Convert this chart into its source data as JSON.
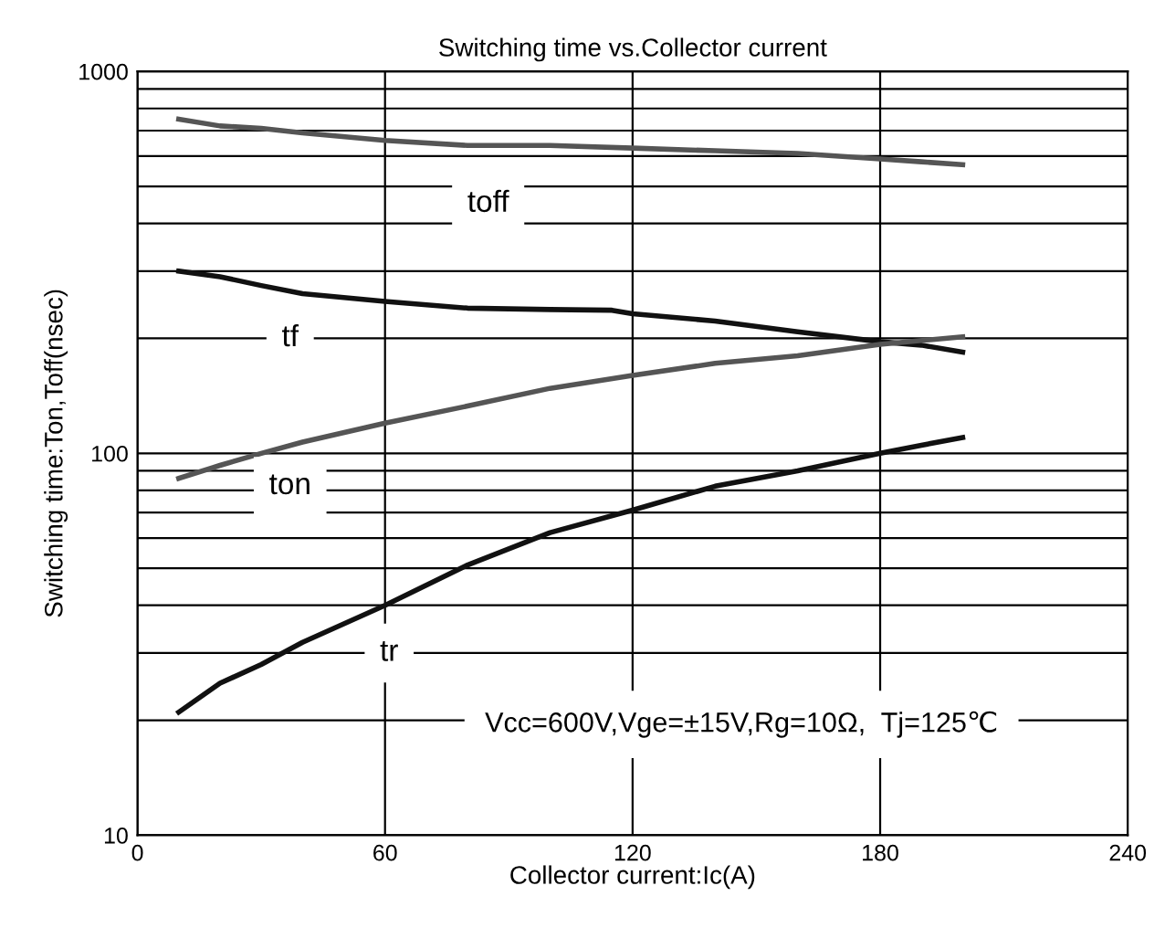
{
  "chart_data": {
    "type": "line",
    "title": "Switching time vs.Collector current",
    "xlabel": "Collector current:Ic(A)",
    "ylabel": "Switching time:Ton,Toff(nsec)",
    "log": "y",
    "grid": true,
    "marker": "none",
    "line_style": "solid",
    "xlim": [
      0,
      240
    ],
    "xticks": [
      0,
      60,
      120,
      180,
      240
    ],
    "ylim": [
      10,
      1000
    ],
    "yticks": [
      10,
      {
        "value": 20,
        "label": null
      },
      {
        "value": 30,
        "label": null
      },
      {
        "value": 40,
        "label": null
      },
      {
        "value": 50,
        "label": null
      },
      {
        "value": 60,
        "label": null
      },
      {
        "value": 70,
        "label": null
      },
      {
        "value": 80,
        "label": null
      },
      {
        "value": 90,
        "label": null
      },
      100,
      {
        "value": 200,
        "label": null
      },
      {
        "value": 300,
        "label": null
      },
      {
        "value": 400,
        "label": null
      },
      {
        "value": 500,
        "label": null
      },
      {
        "value": 600,
        "label": null
      },
      {
        "value": 700,
        "label": null
      },
      {
        "value": 800,
        "label": null
      },
      {
        "value": 900,
        "label": null
      },
      1000
    ],
    "series": [
      {
        "color": "#555555",
        "x": [
          10,
          20,
          30,
          40,
          60,
          80,
          100,
          120,
          140,
          160,
          180,
          190,
          200
        ],
        "values": [
          750,
          720,
          710,
          690,
          660,
          640,
          640,
          630,
          620,
          610,
          590,
          580,
          570
        ]
      },
      {
        "color": "#111111",
        "x": [
          10,
          20,
          30,
          40,
          60,
          80,
          100,
          115,
          120,
          140,
          160,
          180,
          190,
          200
        ],
        "values": [
          300,
          290,
          275,
          262,
          250,
          240,
          238,
          237,
          232,
          222,
          208,
          196,
          192,
          184
        ]
      },
      {
        "color": "#555555",
        "x": [
          10,
          20,
          30,
          40,
          60,
          80,
          100,
          120,
          140,
          160,
          180,
          200
        ],
        "values": [
          86,
          93,
          100,
          107,
          120,
          133,
          148,
          160,
          172,
          180,
          193,
          202
        ]
      },
      {
        "color": "#111111",
        "x": [
          10,
          20,
          30,
          40,
          60,
          80,
          100,
          120,
          140,
          160,
          180,
          190,
          200
        ],
        "values": [
          21,
          25,
          28,
          32,
          40,
          51,
          62,
          71,
          82,
          90,
          100,
          105,
          110
        ]
      }
    ],
    "annotations": [
      {
        "text": "toff",
        "x": 85,
        "y": 450
      },
      {
        "text": "tf",
        "x": 37,
        "y": 200
      },
      {
        "text": "ton",
        "x": 37,
        "y": 82
      },
      {
        "text": "tr",
        "x": 61,
        "y": 30
      },
      "Vcc=600V,Vge=±15V,Rg=10Ω,  Tj=125℃"
    ]
  }
}
